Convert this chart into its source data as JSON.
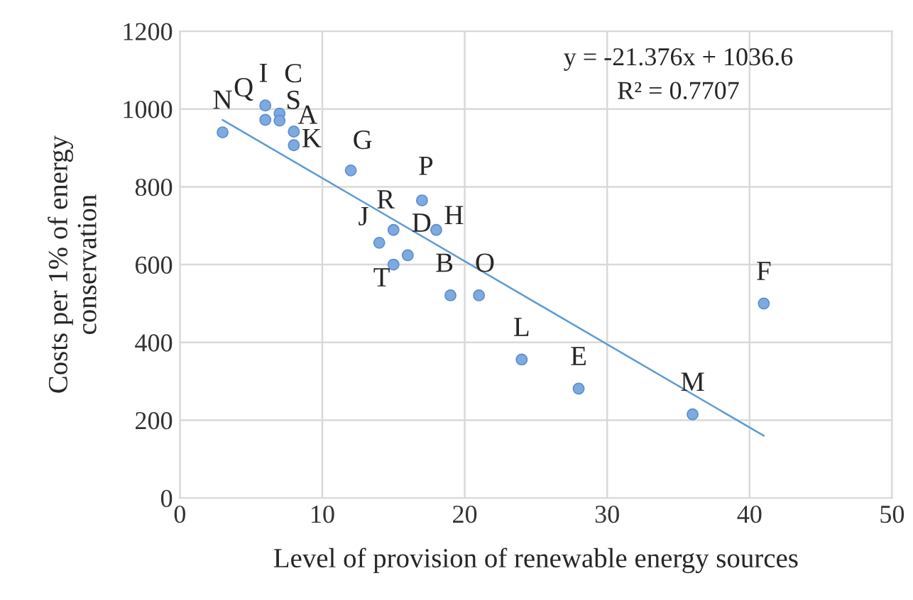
{
  "chart_data": {
    "type": "scatter",
    "xlabel": "Level of provision of renewable energy sources",
    "ylabel": "Costs per 1% of energy\nconservation",
    "xlim": [
      0,
      50
    ],
    "xticks": [
      0,
      10,
      20,
      30,
      40,
      50
    ],
    "ylim": [
      0,
      1200
    ],
    "yticks": [
      0,
      200,
      400,
      600,
      800,
      1000,
      1200
    ],
    "grid": true,
    "series": [
      {
        "color": "#7eaadf",
        "marker": "circle",
        "x": [
          3,
          6,
          6,
          7,
          7,
          8,
          8,
          12,
          17,
          18,
          15,
          14,
          16,
          15,
          19,
          21,
          24,
          28,
          36,
          41
        ],
        "values": [
          940,
          1009,
          972,
          988,
          970,
          942,
          907,
          842,
          765,
          689,
          689,
          656,
          624,
          600,
          521,
          521,
          356,
          281,
          215,
          500
        ]
      },
      {
        "type": "line",
        "color": "#5b9bd5",
        "marker": "none",
        "x": [
          3,
          41
        ],
        "values": [
          972,
          160
        ]
      }
    ],
    "annotations": [
      {
        "text": "N",
        "x": 3,
        "y": 940
      },
      {
        "text": "I",
        "x": 6,
        "y": 1009
      },
      {
        "text": "Q",
        "x": 6,
        "y": 972
      },
      {
        "text": "C",
        "x": 7,
        "y": 988
      },
      {
        "text": "S",
        "x": 7,
        "y": 970
      },
      {
        "text": "A",
        "x": 8,
        "y": 942
      },
      {
        "text": "K",
        "x": 8,
        "y": 907
      },
      {
        "text": "G",
        "x": 12,
        "y": 842
      },
      {
        "text": "P",
        "x": 17,
        "y": 765
      },
      {
        "text": "H",
        "x": 18,
        "y": 689
      },
      {
        "text": "R",
        "x": 15,
        "y": 689
      },
      {
        "text": "J",
        "x": 14,
        "y": 656
      },
      {
        "text": "D",
        "x": 16,
        "y": 624
      },
      {
        "text": "T",
        "x": 15,
        "y": 600
      },
      {
        "text": "B",
        "x": 19,
        "y": 521
      },
      {
        "text": "O",
        "x": 21,
        "y": 521
      },
      {
        "text": "L",
        "x": 24,
        "y": 356
      },
      {
        "text": "E",
        "x": 28,
        "y": 281
      },
      {
        "text": "M",
        "x": 36,
        "y": 215
      },
      {
        "text": "F",
        "x": 41,
        "y": 500
      },
      "y = -21.376x + 1036.6",
      "R² = 0.7707"
    ]
  }
}
